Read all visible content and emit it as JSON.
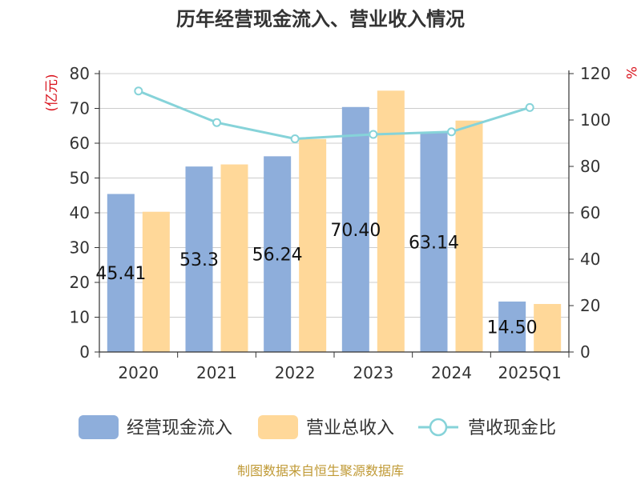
{
  "chart_data": {
    "type": "bar",
    "title": "历年经营现金流入、营业收入情况",
    "categories": [
      "2020",
      "2021",
      "2022",
      "2023",
      "2024",
      "2025Q1"
    ],
    "left_axis": {
      "unit": "(亿元)",
      "ylim": [
        0,
        80
      ],
      "ticks": [
        "0",
        "10",
        "20",
        "30",
        "40",
        "50",
        "60",
        "70",
        "80"
      ]
    },
    "right_axis": {
      "unit": "%",
      "ylim": [
        0,
        120
      ],
      "ticks": [
        "0",
        "20",
        "40",
        "60",
        "80",
        "100",
        "120"
      ]
    },
    "series": [
      {
        "name": "经营现金流入",
        "kind": "bar",
        "axis": "left",
        "color": "#8eaedb",
        "values": [
          45.41,
          53.3,
          56.24,
          70.4,
          63.14,
          14.5
        ],
        "labels": [
          "45.41",
          "53.3",
          "56.24",
          "70.40",
          "63.14",
          "14.50"
        ]
      },
      {
        "name": "营业总收入",
        "kind": "bar",
        "axis": "left",
        "color": "#ffd899",
        "values": [
          40.3,
          53.9,
          61.2,
          75.1,
          66.5,
          13.8
        ]
      },
      {
        "name": "营收现金比",
        "kind": "line",
        "axis": "right",
        "color": "#86d3d9",
        "values": [
          112.5,
          98.9,
          91.9,
          93.8,
          94.9,
          105.4
        ]
      }
    ],
    "grid": true,
    "legend": "bottom"
  },
  "source": "制图数据来自恒生聚源数据库"
}
